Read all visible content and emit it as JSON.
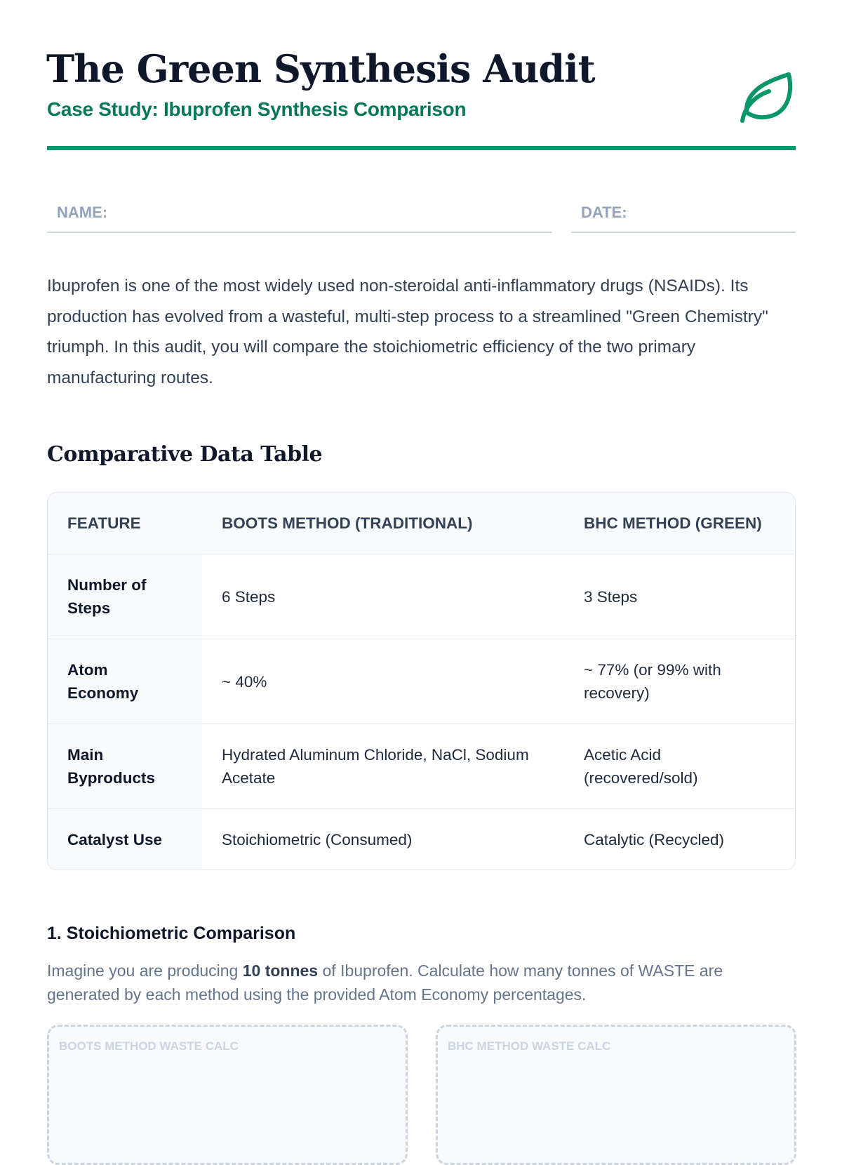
{
  "header": {
    "title": "The Green Synthesis Audit",
    "subtitle": "Case Study: Ibuprofen Synthesis Comparison",
    "icon": "leaf-icon",
    "accent_color": "#059669"
  },
  "fields": {
    "name_label": "NAME:",
    "date_label": "DATE:"
  },
  "intro": "Ibuprofen is one of the most widely used non-steroidal anti-inflammatory drugs (NSAIDs). Its production has evolved from a wasteful, multi-step process to a streamlined \"Green Chemistry\" triumph. In this audit, you will compare the stoichiometric efficiency of the two primary manufacturing routes.",
  "table": {
    "heading": "Comparative Data Table",
    "columns": [
      "FEATURE",
      "BOOTS METHOD (TRADITIONAL)",
      "BHC METHOD (GREEN)"
    ],
    "rows": [
      [
        "Number of Steps",
        "6 Steps",
        "3 Steps"
      ],
      [
        "Atom Economy",
        "~ 40%",
        "~ 77% (or 99% with recovery)"
      ],
      [
        "Main Byproducts",
        "Hydrated Aluminum Chloride, NaCl, Sodium Acetate",
        "Acetic Acid (recovered/sold)"
      ],
      [
        "Catalyst Use",
        "Stoichiometric (Consumed)",
        "Catalytic (Recycled)"
      ]
    ]
  },
  "question1": {
    "heading": "1. Stoichiometric Comparison",
    "text_before": "Imagine you are producing ",
    "text_bold": "10 tonnes",
    "text_after": " of Ibuprofen. Calculate how many tonnes of WASTE are generated by each method using the provided Atom Economy percentages.",
    "boots_box_label": "BOOTS METHOD WASTE CALC",
    "bhc_box_label": "BHC METHOD WASTE CALC"
  }
}
